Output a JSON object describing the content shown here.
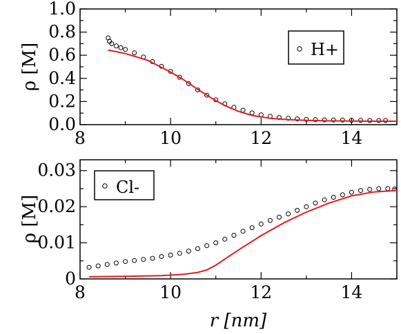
{
  "chart_data": [
    {
      "type": "scatter",
      "xlim": [
        8,
        15
      ],
      "ylim": [
        0,
        1.0
      ],
      "xticks": [
        "8",
        "10",
        "12",
        "14"
      ],
      "yticks": [
        "0.0",
        "0.2",
        "0.4",
        "0.6",
        "0.8",
        "1.0"
      ],
      "xlabel": "",
      "ylabel": "ρ [M]",
      "grid": false,
      "legend_position": "top-right",
      "series": [
        {
          "name": "H+",
          "kind": "markers",
          "marker": "open-circle",
          "color": "#000000",
          "x": [
            8.62,
            8.65,
            8.7,
            8.8,
            8.9,
            9.0,
            9.2,
            9.4,
            9.6,
            9.8,
            10.0,
            10.2,
            10.4,
            10.6,
            10.8,
            11.0,
            11.2,
            11.4,
            11.6,
            11.8,
            12.0,
            12.2,
            12.4,
            12.6,
            12.8,
            13.0,
            13.2,
            13.4,
            13.6,
            13.8,
            14.0,
            14.2,
            14.4,
            14.6,
            14.75
          ],
          "y": [
            0.75,
            0.72,
            0.7,
            0.68,
            0.665,
            0.65,
            0.62,
            0.585,
            0.545,
            0.505,
            0.46,
            0.41,
            0.355,
            0.3,
            0.255,
            0.215,
            0.18,
            0.15,
            0.125,
            0.102,
            0.085,
            0.072,
            0.062,
            0.055,
            0.05,
            0.046,
            0.043,
            0.041,
            0.04,
            0.039,
            0.038,
            0.037,
            0.036,
            0.036,
            0.036
          ]
        },
        {
          "name": "",
          "kind": "line",
          "color": "#e8191c",
          "x": [
            8.62,
            9.0,
            9.5,
            10.0,
            10.3,
            10.6,
            10.9,
            11.2,
            11.5,
            11.8,
            12.2,
            12.6,
            13.0,
            13.5,
            14.0,
            14.5,
            15.0
          ],
          "y": [
            0.645,
            0.615,
            0.555,
            0.455,
            0.385,
            0.305,
            0.23,
            0.165,
            0.115,
            0.08,
            0.055,
            0.043,
            0.037,
            0.033,
            0.031,
            0.03,
            0.03
          ]
        }
      ]
    },
    {
      "type": "scatter",
      "xlim": [
        8,
        15
      ],
      "ylim": [
        0,
        0.033
      ],
      "xticks": [
        "8",
        "10",
        "12",
        "14"
      ],
      "yticks": [
        "0",
        "0.01",
        "0.02",
        "0.03"
      ],
      "xlabel": "r [nm]",
      "ylabel": "ρ [M]",
      "grid": false,
      "legend_position": "top-left",
      "series": [
        {
          "name": "Cl-",
          "kind": "markers",
          "marker": "open-circle",
          "color": "#000000",
          "x": [
            8.2,
            8.4,
            8.6,
            8.8,
            9.0,
            9.2,
            9.4,
            9.6,
            9.8,
            10.0,
            10.2,
            10.4,
            10.6,
            10.8,
            11.0,
            11.2,
            11.4,
            11.6,
            11.8,
            12.0,
            12.2,
            12.4,
            12.6,
            12.8,
            13.0,
            13.2,
            13.4,
            13.6,
            13.8,
            14.0,
            14.2,
            14.4,
            14.6,
            14.8,
            14.95
          ],
          "y": [
            0.0032,
            0.0036,
            0.004,
            0.0044,
            0.0048,
            0.0051,
            0.0054,
            0.0057,
            0.0062,
            0.0066,
            0.0071,
            0.0077,
            0.0084,
            0.0092,
            0.01,
            0.011,
            0.0121,
            0.0132,
            0.0142,
            0.0152,
            0.0162,
            0.0171,
            0.018,
            0.019,
            0.02,
            0.021,
            0.0219,
            0.0226,
            0.0233,
            0.024,
            0.0245,
            0.0248,
            0.025,
            0.025,
            0.0249
          ]
        },
        {
          "name": "",
          "kind": "line",
          "color": "#e8191c",
          "x": [
            8.2,
            9.0,
            9.8,
            10.3,
            10.6,
            10.8,
            11.0,
            11.2,
            11.5,
            12.0,
            12.5,
            13.0,
            13.5,
            14.0,
            14.5,
            15.0
          ],
          "y": [
            0.0006,
            0.0007,
            0.0009,
            0.0013,
            0.0018,
            0.0025,
            0.0038,
            0.0055,
            0.008,
            0.012,
            0.0155,
            0.0185,
            0.021,
            0.023,
            0.0241,
            0.0245
          ]
        }
      ]
    }
  ]
}
